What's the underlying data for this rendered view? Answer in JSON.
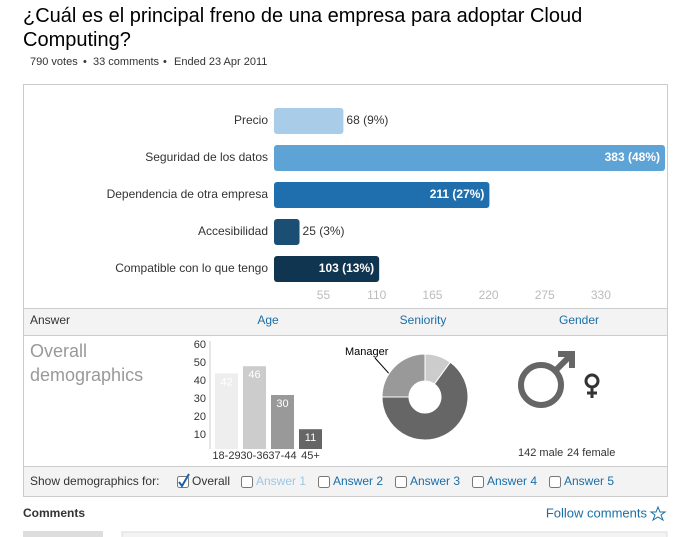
{
  "title": "¿Cuál es el principal freno de una empresa para adoptar Cloud Computing?",
  "meta": {
    "votes": "790 votes",
    "comments": "33 comments",
    "ended": "Ended 23 Apr 2011"
  },
  "results": {
    "type": "bar",
    "categories": [
      "Precio",
      "Seguridad de los datos",
      "Dependencia de otra empresa",
      "Accesibilidad",
      "Compatible con lo que tengo"
    ],
    "values": [
      68,
      383,
      211,
      25,
      103
    ],
    "value_labels": [
      "68 (9%)",
      "383 (48%)",
      "211 (27%)",
      "25 (3%)",
      "103 (13%)"
    ],
    "colors": [
      "#a9cce9",
      "#5ea3d5",
      "#1f6fae",
      "#1b4e73",
      "#0f3550"
    ],
    "xlim": [
      0,
      383
    ],
    "xticks": [
      55,
      110,
      165,
      220,
      275,
      330
    ]
  },
  "tabs": [
    "Answer",
    "Age",
    "Seniority",
    "Gender"
  ],
  "demographics_heading": "Overall demographics",
  "age": {
    "type": "bar",
    "categories": [
      "18-29",
      "30-36",
      "37-44",
      "45+"
    ],
    "values": [
      42,
      46,
      30,
      11
    ],
    "colors": [
      "#eeeeee",
      "#cccccc",
      "#999999",
      "#666666"
    ],
    "ylim": [
      0,
      60
    ],
    "yticks": [
      10,
      20,
      30,
      40,
      50,
      60
    ]
  },
  "seniority": {
    "type": "pie",
    "categories": [
      "Manager",
      null,
      null
    ],
    "values": [
      25,
      10,
      65
    ],
    "colors": [
      "#999999",
      "#cccccc",
      "#666666"
    ]
  },
  "gender": {
    "male": "142 male",
    "female": "24 female"
  },
  "filter": {
    "label": "Show demographics for:",
    "options": [
      {
        "label": "Overall",
        "checked": true,
        "enabled": true
      },
      {
        "label": "Answer 1",
        "checked": false,
        "enabled": false
      },
      {
        "label": "Answer 2",
        "checked": false,
        "enabled": true
      },
      {
        "label": "Answer 3",
        "checked": false,
        "enabled": true
      },
      {
        "label": "Answer 4",
        "checked": false,
        "enabled": true
      },
      {
        "label": "Answer 5",
        "checked": false,
        "enabled": true
      }
    ]
  },
  "comments": {
    "heading": "Comments",
    "follow": "Follow comments"
  }
}
